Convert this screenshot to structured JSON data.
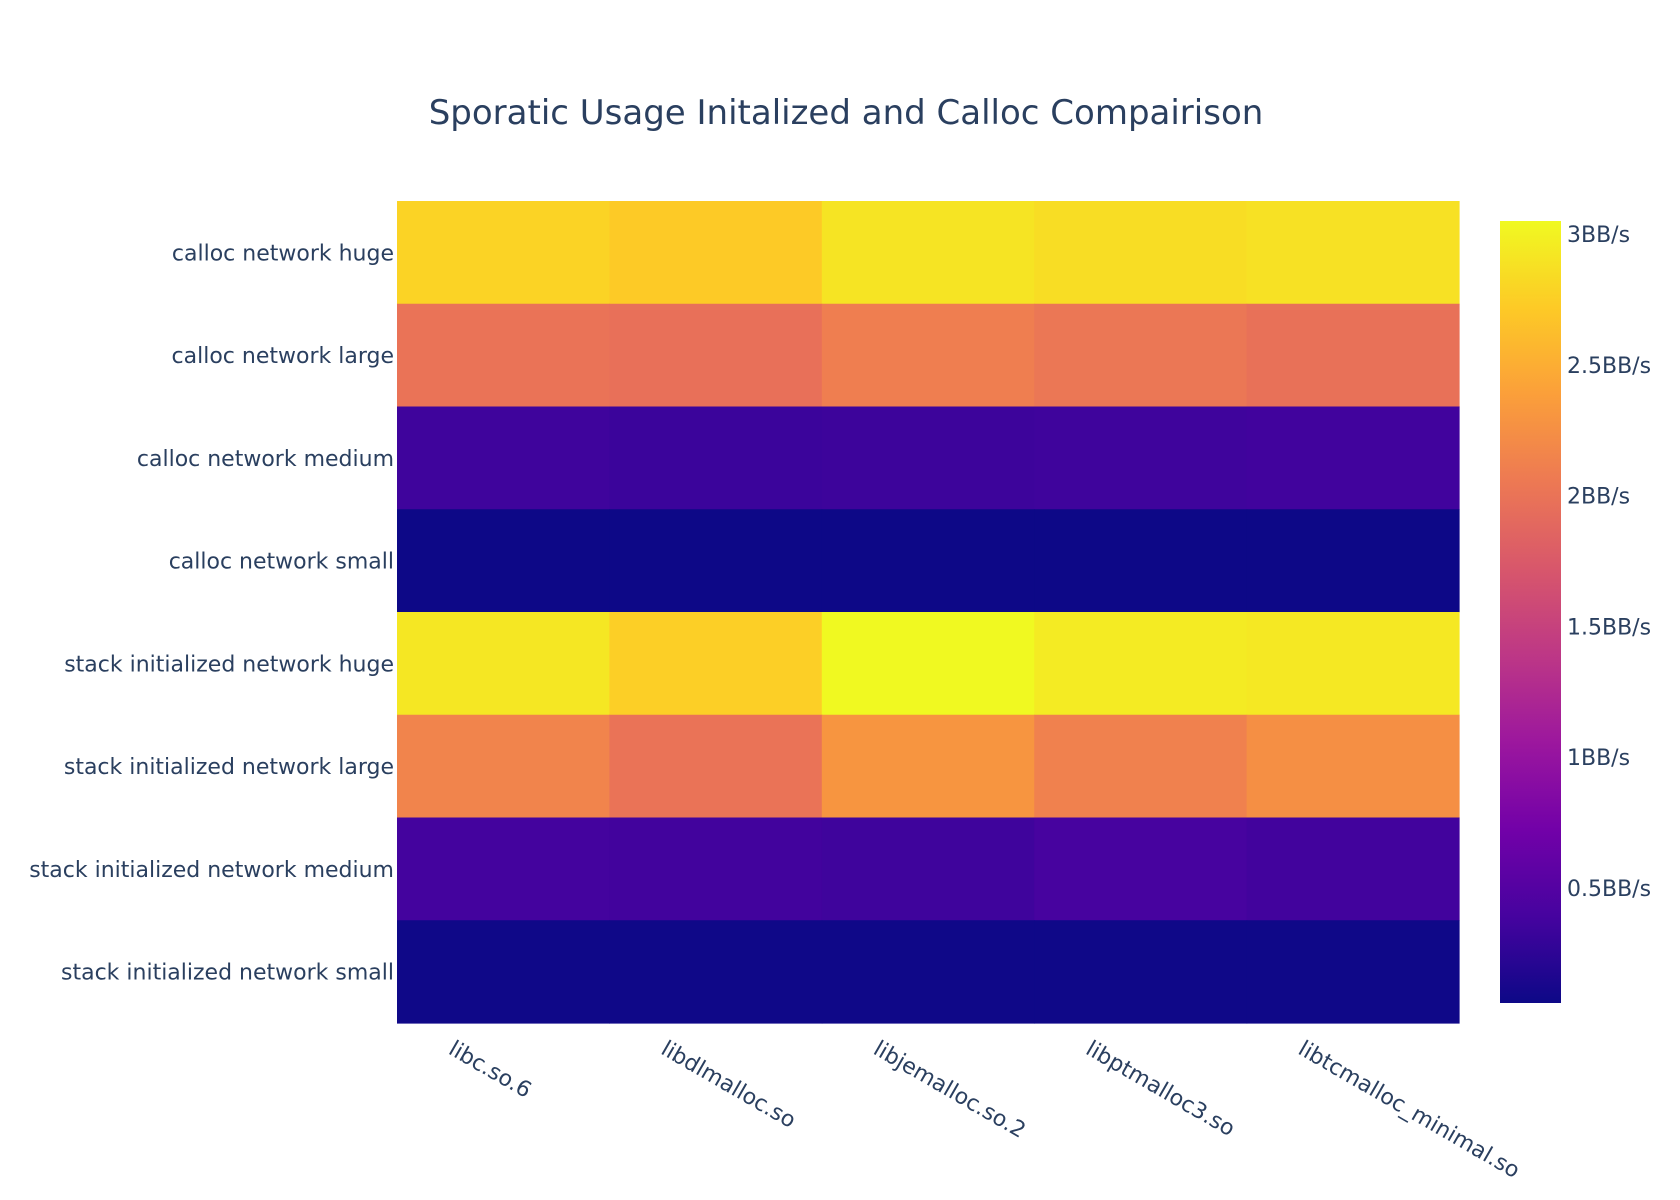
{
  "chart_data": {
    "type": "heatmap",
    "title": "Sporatic Usage Initalized and Calloc Compairison",
    "xlabel": "",
    "ylabel": "",
    "x": [
      "libc.so.6",
      "libdlmalloc.so",
      "libjemalloc.so.2",
      "libptmalloc3.so",
      "libtcmalloc_minimal.so"
    ],
    "y": [
      "calloc network huge",
      "calloc network large",
      "calloc network medium",
      "calloc network small",
      "stack initialized network huge",
      "stack initialized network large",
      "stack initialized network medium",
      "stack initialized network small"
    ],
    "z": [
      [
        2.78,
        2.72,
        2.9,
        2.85,
        2.88
      ],
      [
        2.0,
        1.97,
        2.1,
        2.03,
        1.98
      ],
      [
        0.35,
        0.33,
        0.34,
        0.35,
        0.36
      ],
      [
        0.06,
        0.06,
        0.06,
        0.06,
        0.06
      ],
      [
        2.92,
        2.75,
        3.05,
        2.95,
        2.93
      ],
      [
        2.15,
        2.0,
        2.3,
        2.12,
        2.25
      ],
      [
        0.38,
        0.37,
        0.35,
        0.4,
        0.37
      ],
      [
        0.07,
        0.07,
        0.07,
        0.07,
        0.07
      ]
    ],
    "zrange": [
      0.06,
      3.05
    ],
    "colorscale": "plasma",
    "colorbar": {
      "ticks": [
        0.5,
        1,
        1.5,
        2,
        2.5,
        3
      ],
      "ticklabels": [
        "0.5BB/s",
        "1BB/s",
        "1.5BB/s",
        "2BB/s",
        "2.5BB/s",
        "3BB/s"
      ]
    },
    "legend": "colorbar-right"
  }
}
